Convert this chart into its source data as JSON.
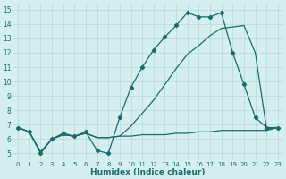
{
  "line1_x": [
    0,
    1,
    2,
    3,
    4,
    5,
    6,
    7,
    8,
    9,
    10,
    11,
    12,
    13,
    14,
    15,
    16,
    17,
    18,
    19,
    20,
    21,
    22,
    23
  ],
  "line1_y": [
    6.8,
    6.5,
    5.0,
    6.0,
    6.4,
    6.2,
    6.5,
    5.2,
    5.0,
    7.5,
    9.6,
    11.0,
    12.2,
    13.1,
    13.9,
    14.8,
    14.5,
    14.5,
    14.8,
    12.0,
    9.8,
    7.5,
    6.8,
    6.8
  ],
  "line2_x": [
    0,
    1,
    2,
    3,
    4,
    5,
    6,
    7,
    8,
    9,
    10,
    11,
    12,
    13,
    14,
    15,
    16,
    17,
    18,
    19,
    20,
    21,
    22,
    23
  ],
  "line2_y": [
    6.8,
    6.5,
    5.1,
    6.0,
    6.3,
    6.2,
    6.4,
    6.1,
    6.1,
    6.2,
    6.9,
    7.8,
    8.7,
    9.8,
    10.9,
    11.9,
    12.5,
    13.2,
    13.7,
    13.8,
    13.9,
    12.0,
    6.7,
    6.8
  ],
  "line3_x": [
    0,
    1,
    2,
    3,
    4,
    5,
    6,
    7,
    8,
    9,
    10,
    11,
    12,
    13,
    14,
    15,
    16,
    17,
    18,
    19,
    20,
    21,
    22,
    23
  ],
  "line3_y": [
    6.8,
    6.5,
    5.1,
    6.0,
    6.3,
    6.2,
    6.4,
    6.1,
    6.1,
    6.2,
    6.2,
    6.3,
    6.3,
    6.3,
    6.4,
    6.4,
    6.5,
    6.5,
    6.6,
    6.6,
    6.6,
    6.6,
    6.6,
    6.8
  ],
  "xlabel": "Humidex (Indice chaleur)",
  "yticks": [
    5,
    6,
    7,
    8,
    9,
    10,
    11,
    12,
    13,
    14,
    15
  ],
  "xticks": [
    0,
    1,
    2,
    3,
    4,
    5,
    6,
    7,
    8,
    9,
    10,
    11,
    12,
    13,
    14,
    15,
    16,
    17,
    18,
    19,
    20,
    21,
    22,
    23
  ],
  "xlim": [
    -0.5,
    23.5
  ],
  "ylim": [
    4.5,
    15.5
  ],
  "color": "#1a6b6b",
  "bg_color": "#d5efef",
  "grid_color": "#b8d8d8"
}
